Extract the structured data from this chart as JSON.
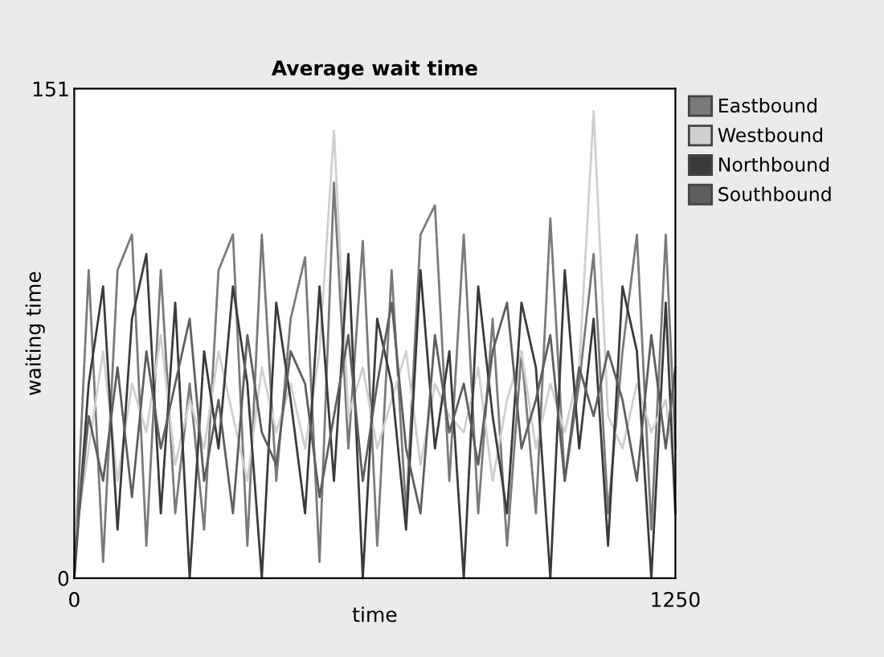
{
  "chart_data": {
    "type": "line",
    "title": "Average wait time",
    "xlabel": "time",
    "ylabel": "waiting time",
    "x": [
      0,
      30,
      60,
      90,
      120,
      150,
      180,
      210,
      240,
      270,
      300,
      330,
      360,
      390,
      420,
      450,
      480,
      510,
      540,
      570,
      600,
      630,
      660,
      690,
      720,
      750,
      780,
      810,
      840,
      870,
      900,
      930,
      960,
      990,
      1020,
      1050,
      1080,
      1110,
      1140,
      1170,
      1200,
      1230,
      1250
    ],
    "series": [
      {
        "name": "Eastbound",
        "color": "#7a7a7a",
        "values": [
          0,
          95,
          5,
          95,
          106,
          10,
          95,
          20,
          60,
          15,
          95,
          106,
          10,
          106,
          30,
          80,
          99,
          5,
          122,
          40,
          104,
          10,
          95,
          20,
          106,
          115,
          30,
          106,
          20,
          80,
          10,
          70,
          20,
          111,
          30,
          60,
          100,
          20,
          70,
          106,
          15,
          106,
          40
        ]
      },
      {
        "name": "Westbound",
        "color": "#cfcfcf",
        "values": [
          10,
          40,
          70,
          30,
          60,
          45,
          75,
          35,
          55,
          40,
          70,
          50,
          30,
          65,
          45,
          60,
          40,
          70,
          138,
          50,
          65,
          40,
          55,
          70,
          35,
          60,
          50,
          45,
          65,
          30,
          55,
          70,
          40,
          60,
          45,
          65,
          144,
          50,
          40,
          60,
          45,
          55,
          30
        ]
      },
      {
        "name": "Northbound",
        "color": "#3a3a3a",
        "values": [
          0,
          60,
          90,
          15,
          80,
          100,
          20,
          85,
          0,
          70,
          40,
          90,
          60,
          0,
          85,
          55,
          20,
          90,
          30,
          100,
          0,
          80,
          60,
          15,
          95,
          40,
          70,
          0,
          90,
          50,
          20,
          85,
          65,
          0,
          95,
          40,
          80,
          10,
          90,
          70,
          0,
          85,
          20
        ]
      },
      {
        "name": "Southbound",
        "color": "#5e5e5e",
        "values": [
          5,
          50,
          30,
          65,
          25,
          70,
          40,
          60,
          80,
          30,
          55,
          20,
          75,
          45,
          35,
          70,
          60,
          25,
          50,
          75,
          30,
          60,
          85,
          40,
          20,
          75,
          45,
          60,
          35,
          70,
          85,
          40,
          55,
          75,
          30,
          65,
          50,
          70,
          55,
          30,
          75,
          40,
          65
        ]
      }
    ],
    "xlim": [
      0,
      1250
    ],
    "xticks": [
      0,
      1250
    ],
    "ylim": [
      0,
      151
    ],
    "yticks": [
      0,
      151
    ],
    "grid": false,
    "legend": "right",
    "marker": "none",
    "line_style": "solid"
  }
}
